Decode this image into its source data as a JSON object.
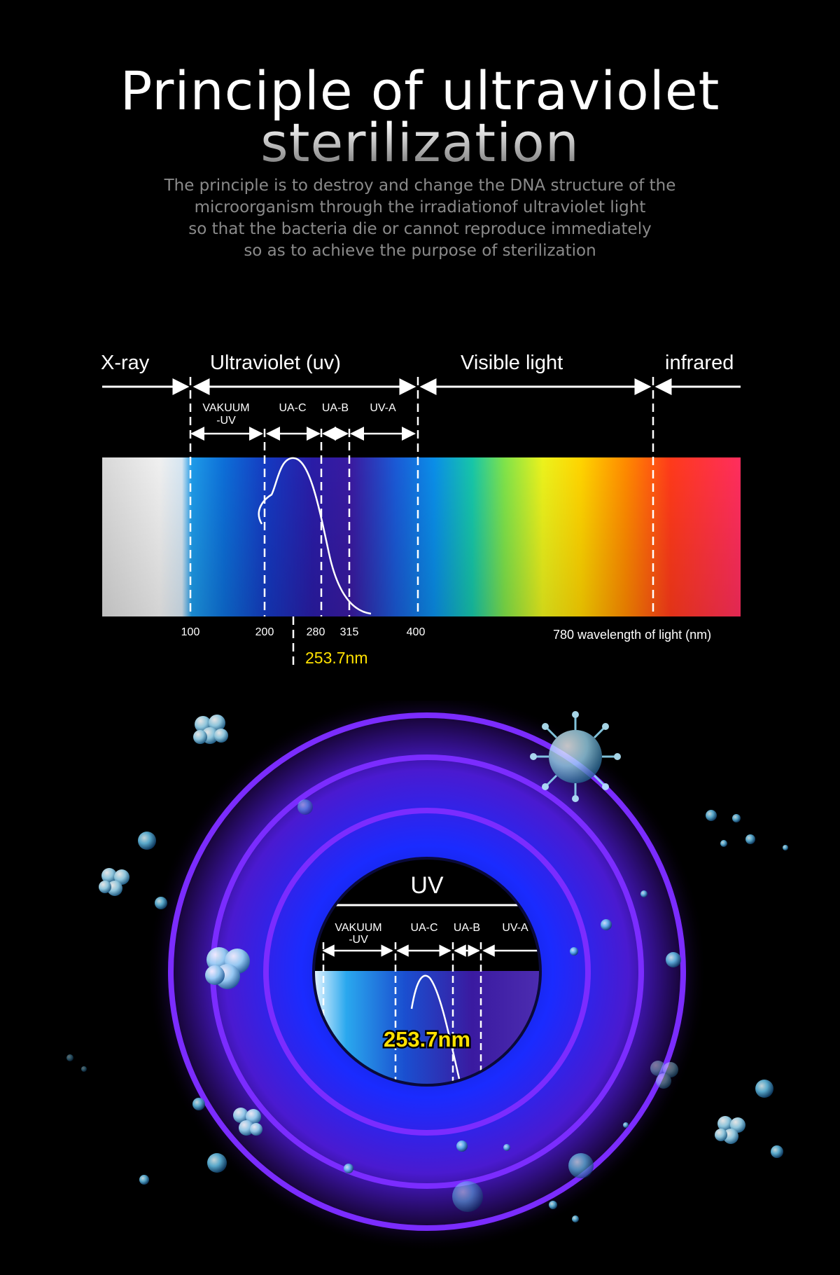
{
  "header": {
    "title_line1": "Principle of ultraviolet",
    "title_line2": "sterilization",
    "description": [
      "The principle is to destroy and change the DNA structure of the",
      "microorganism through the irradiationof ultraviolet light",
      "so that the bacteria die or cannot reproduce immediately",
      "so as to achieve the purpose of sterilization"
    ]
  },
  "spectrum": {
    "regions": {
      "xray": "X-ray",
      "ultraviolet": "Ultraviolet (uv)",
      "visible": "Visible light",
      "infrared": "infrared"
    },
    "subbands": {
      "vacuum_line1": "VAKUUM",
      "vacuum_line2": "-UV",
      "uac": "UA-C",
      "uab": "UA-B",
      "uva": "UV-A"
    },
    "ticks": {
      "t100": "100",
      "t200": "200",
      "t280": "280",
      "t315": "315",
      "t400": "400",
      "t780": "780 wavelength of light (nm)"
    },
    "peak_label": "253.7nm"
  },
  "lens": {
    "title": "UV",
    "subbands": {
      "vacuum_line1": "VAKUUM",
      "vacuum_line2": "-UV",
      "uac": "UA-C",
      "uab": "UA-B",
      "uva": "UV-A"
    },
    "peak_label": "253.7nm"
  },
  "colors": {
    "ring": "#7b2cff",
    "peak_yellow": "#ffe100",
    "glow_blue": "#1a2bff"
  },
  "icons": [
    "bacteria-cluster-icon",
    "virus-icon",
    "bubble-icon"
  ]
}
